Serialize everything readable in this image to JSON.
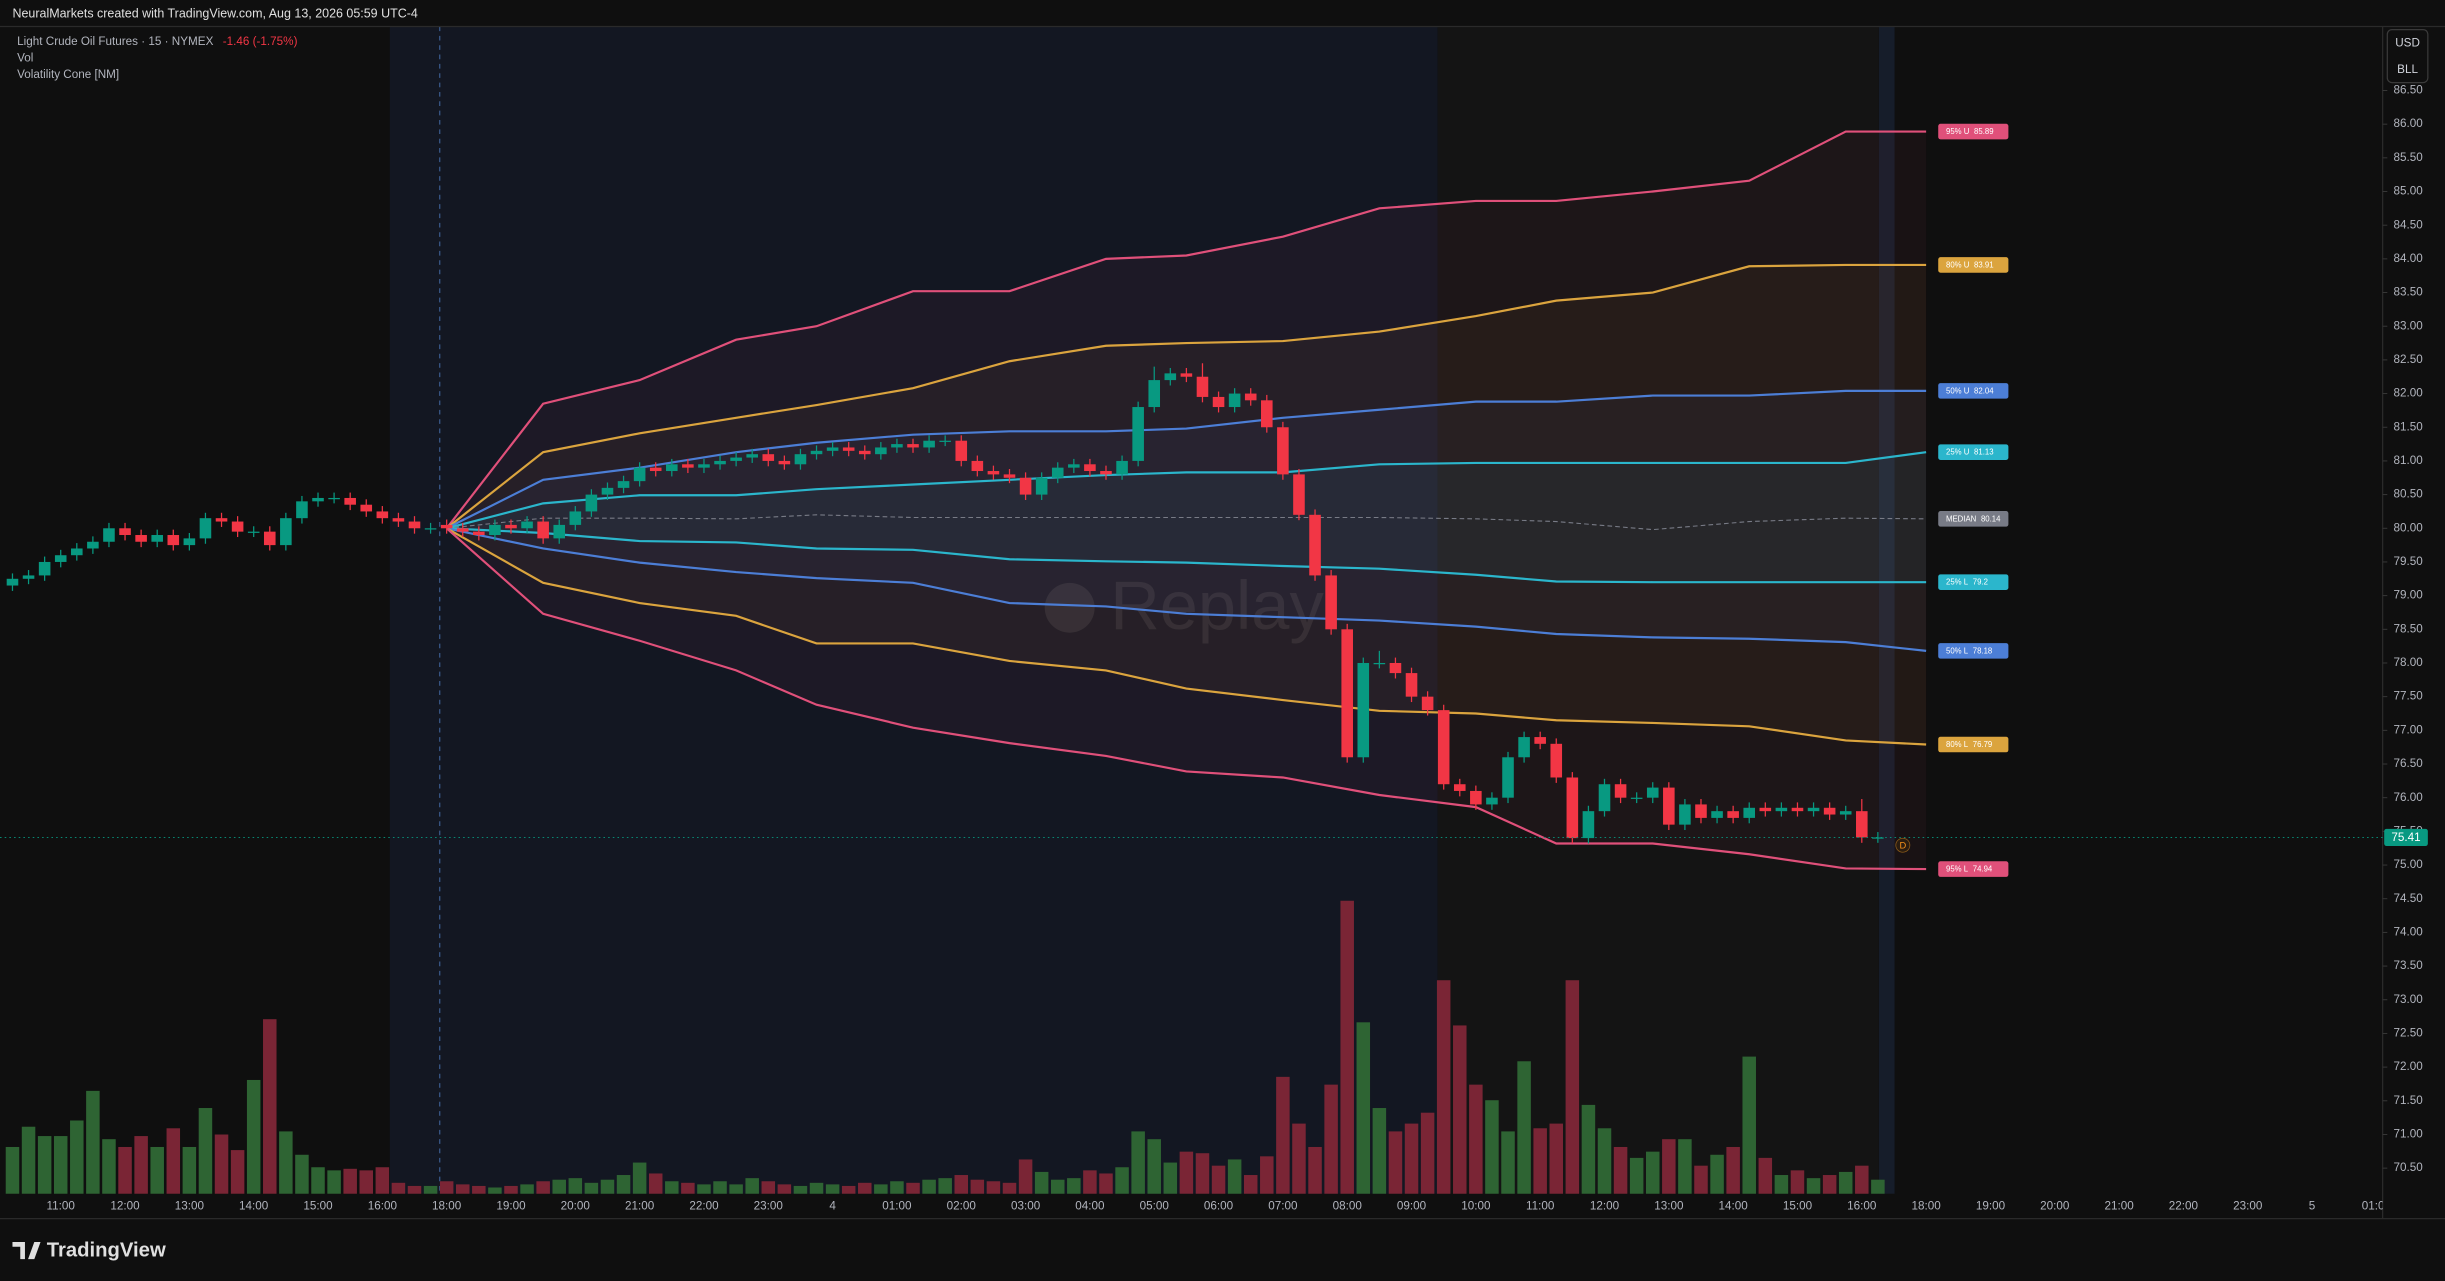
{
  "credit": "NeuralMarkets created with TradingView.com, Aug 13, 2026 05:59 UTC-4",
  "brand": "TradingView",
  "chart_data": {
    "type": "candlestick",
    "title": "Light Crude Oil Futures · 15 · NYMEX",
    "change": "-1.46 (-1.75%)",
    "indicators": [
      "Vol",
      "Volatility Cone [NM]"
    ],
    "currency": "USD",
    "unit": "BLL",
    "watermark": "Replay",
    "marker": "D",
    "up_color": "#089981",
    "down_color": "#f23645",
    "volume_up_color": "#2e6433",
    "volume_down_color": "#7a2535",
    "grid": false,
    "x": [
      "10:15",
      "10:30",
      "10:45",
      "11:00",
      "11:15",
      "11:30",
      "11:45",
      "12:00",
      "12:15",
      "12:30",
      "12:45",
      "13:00",
      "13:15",
      "13:30",
      "13:45",
      "14:00",
      "14:15",
      "14:30",
      "14:45",
      "15:00",
      "15:15",
      "15:30",
      "15:45",
      "16:00",
      "16:15",
      "16:30",
      "16:45",
      "18:00",
      "18:15",
      "18:30",
      "18:45",
      "19:00",
      "19:15",
      "19:30",
      "19:45",
      "20:00",
      "20:15",
      "20:30",
      "20:45",
      "21:00",
      "21:15",
      "21:30",
      "21:45",
      "22:00",
      "22:15",
      "22:30",
      "22:45",
      "23:00",
      "23:15",
      "23:30",
      "23:45",
      "4",
      "00:15",
      "00:30",
      "00:45",
      "01:00",
      "01:15",
      "01:30",
      "01:45",
      "02:00",
      "02:15",
      "02:30",
      "02:45",
      "03:00",
      "03:15",
      "03:30",
      "03:45",
      "04:00",
      "04:15",
      "04:30",
      "04:45",
      "05:00",
      "05:15",
      "05:30",
      "05:45",
      "06:00",
      "06:15",
      "06:30",
      "06:45",
      "07:00",
      "07:15",
      "07:30",
      "07:45",
      "08:00",
      "08:15",
      "08:30",
      "08:45",
      "09:00",
      "09:15",
      "09:30",
      "09:45",
      "10:00",
      "10:15",
      "10:30",
      "10:45",
      "11:00",
      "11:15",
      "11:30",
      "11:45",
      "12:00",
      "12:15",
      "12:30",
      "12:45",
      "13:00",
      "13:15",
      "13:30",
      "13:45",
      "14:00",
      "14:15",
      "14:30",
      "14:45",
      "15:00",
      "15:15",
      "15:30",
      "15:45",
      "16:00",
      "16:15",
      "16:30",
      "16:45",
      "18:00",
      "18:15",
      "18:30",
      "18:45",
      "19:00",
      "19:15",
      "19:30",
      "19:45",
      "20:00",
      "20:15",
      "20:30",
      "20:45",
      "21:00",
      "21:15",
      "21:30",
      "21:45",
      "22:00",
      "22:15",
      "22:30",
      "22:45",
      "23:00",
      "23:15",
      "23:30",
      "23:45",
      "5",
      "00:15",
      "00:30",
      "00:45",
      "01:00"
    ],
    "open": [
      79.15,
      79.25,
      79.3,
      79.5,
      79.6,
      79.7,
      79.8,
      80.0,
      79.9,
      79.8,
      79.9,
      79.75,
      79.85,
      80.15,
      80.1,
      79.95,
      79.95,
      79.75,
      80.15,
      80.4,
      80.45,
      80.45,
      80.35,
      80.25,
      80.15,
      80.1,
      80.0,
      80.05,
      80.0,
      79.95,
      79.9,
      80.05,
      80.0,
      80.1,
      79.85,
      80.05,
      80.25,
      80.5,
      80.6,
      80.7,
      80.9,
      80.85,
      80.95,
      80.9,
      80.95,
      81.0,
      81.05,
      81.1,
      81.0,
      80.95,
      81.1,
      81.15,
      81.2,
      81.15,
      81.1,
      81.2,
      81.25,
      81.2,
      81.3,
      81.3,
      81.0,
      80.85,
      80.8,
      80.75,
      80.5,
      80.75,
      80.9,
      80.95,
      80.85,
      80.8,
      81.0,
      81.8,
      82.2,
      82.3,
      82.25,
      81.95,
      81.8,
      82.0,
      81.9,
      81.5,
      80.8,
      80.2,
      79.3,
      78.5,
      76.6,
      78.0,
      78.0,
      77.85,
      77.5,
      77.3,
      76.2,
      76.1,
      75.9,
      76.0,
      76.6,
      76.9,
      76.8,
      76.3,
      75.4,
      75.8,
      76.2,
      76.0,
      76.0,
      76.15,
      75.6,
      75.9,
      75.7,
      75.8,
      75.7,
      75.85,
      75.8,
      75.85,
      75.8,
      75.85,
      75.75,
      75.8,
      75.41,
      null,
      null,
      null,
      null,
      null,
      null,
      null,
      null,
      null,
      null,
      null,
      null,
      null,
      null,
      null,
      null,
      null,
      null,
      null,
      null,
      null,
      null,
      null,
      null,
      null,
      null,
      null,
      null,
      null,
      null,
      null
    ],
    "high": [
      79.33,
      79.38,
      79.58,
      79.68,
      79.78,
      79.88,
      80.08,
      80.08,
      79.98,
      79.98,
      79.98,
      79.93,
      80.23,
      80.23,
      80.18,
      80.03,
      80.03,
      80.23,
      80.48,
      80.53,
      80.53,
      80.53,
      80.43,
      80.33,
      80.23,
      80.18,
      80.08,
      80.13,
      80.08,
      80.03,
      80.13,
      80.13,
      80.18,
      80.18,
      80.13,
      80.33,
      80.58,
      80.68,
      80.78,
      80.98,
      80.98,
      81.03,
      81.03,
      81.03,
      81.08,
      81.13,
      81.18,
      81.18,
      81.08,
      81.18,
      81.23,
      81.28,
      81.28,
      81.23,
      81.28,
      81.33,
      81.33,
      81.38,
      81.38,
      81.38,
      81.08,
      80.93,
      80.88,
      80.83,
      80.83,
      80.98,
      81.03,
      81.03,
      80.93,
      81.08,
      81.88,
      82.4,
      82.38,
      82.38,
      82.45,
      82.03,
      82.08,
      82.08,
      81.98,
      81.58,
      80.88,
      80.28,
      79.38,
      78.58,
      78.08,
      78.18,
      78.08,
      77.93,
      77.58,
      77.38,
      76.28,
      76.18,
      76.08,
      76.68,
      76.98,
      76.98,
      76.88,
      76.38,
      75.88,
      76.28,
      76.28,
      76.08,
      76.23,
      76.23,
      75.98,
      75.98,
      75.88,
      75.88,
      75.93,
      75.93,
      75.93,
      75.93,
      75.93,
      75.93,
      75.88,
      75.98,
      75.49,
      null,
      null,
      null,
      null,
      null,
      null,
      null,
      null,
      null,
      null,
      null,
      null,
      null,
      null,
      null,
      null,
      null,
      null,
      null,
      null,
      null,
      null,
      null,
      null,
      null,
      null,
      null,
      null,
      null,
      null,
      null
    ],
    "low": [
      79.07,
      79.17,
      79.22,
      79.42,
      79.52,
      79.62,
      79.72,
      79.82,
      79.72,
      79.72,
      79.67,
      79.67,
      79.77,
      80.02,
      79.87,
      79.87,
      79.67,
      79.67,
      80.07,
      80.32,
      80.37,
      80.27,
      80.17,
      80.07,
      80.02,
      79.92,
      79.92,
      79.92,
      79.87,
      79.82,
      79.82,
      79.92,
      79.92,
      79.77,
      79.77,
      79.97,
      80.17,
      80.42,
      80.52,
      80.62,
      80.77,
      80.77,
      80.82,
      80.82,
      80.87,
      80.92,
      80.97,
      80.92,
      80.87,
      80.87,
      81.02,
      81.07,
      81.07,
      81.02,
      81.02,
      81.12,
      81.12,
      81.12,
      81.22,
      80.92,
      80.77,
      80.72,
      80.67,
      80.42,
      80.42,
      80.67,
      80.82,
      80.77,
      80.72,
      80.72,
      80.92,
      81.72,
      82.12,
      82.17,
      81.87,
      81.72,
      81.72,
      81.82,
      81.42,
      80.72,
      80.12,
      79.22,
      78.42,
      76.52,
      76.52,
      77.92,
      77.77,
      77.42,
      77.22,
      76.12,
      76.02,
      75.82,
      75.82,
      75.92,
      76.52,
      76.72,
      76.22,
      75.32,
      75.32,
      75.72,
      75.92,
      75.92,
      75.92,
      75.52,
      75.52,
      75.62,
      75.62,
      75.62,
      75.62,
      75.72,
      75.72,
      75.72,
      75.72,
      75.67,
      75.67,
      75.33,
      75.33,
      null,
      null,
      null,
      null,
      null,
      null,
      null,
      null,
      null,
      null,
      null,
      null,
      null,
      null,
      null,
      null,
      null,
      null,
      null,
      null,
      null,
      null,
      null,
      null,
      null,
      null,
      null,
      null,
      null,
      null,
      null
    ],
    "close": [
      79.25,
      79.3,
      79.5,
      79.6,
      79.7,
      79.8,
      80.0,
      79.9,
      79.8,
      79.9,
      79.75,
      79.85,
      80.15,
      80.1,
      79.95,
      79.95,
      79.75,
      80.15,
      80.4,
      80.45,
      80.45,
      80.35,
      80.25,
      80.15,
      80.1,
      80.0,
      80.0,
      80.0,
      79.95,
      79.9,
      80.05,
      80.0,
      80.1,
      79.85,
      80.05,
      80.25,
      80.5,
      80.6,
      80.7,
      80.9,
      80.85,
      80.95,
      80.9,
      80.95,
      81.0,
      81.05,
      81.1,
      81.0,
      80.95,
      81.1,
      81.15,
      81.2,
      81.15,
      81.1,
      81.2,
      81.25,
      81.2,
      81.3,
      81.3,
      81.0,
      80.85,
      80.8,
      80.75,
      80.5,
      80.75,
      80.9,
      80.95,
      80.85,
      80.8,
      81.0,
      81.8,
      82.2,
      82.3,
      82.25,
      81.95,
      81.8,
      82.0,
      81.9,
      81.5,
      80.8,
      80.2,
      79.3,
      78.5,
      76.6,
      78.0,
      78.0,
      77.85,
      77.5,
      77.3,
      76.2,
      76.1,
      75.9,
      76.0,
      76.6,
      76.9,
      76.8,
      76.3,
      75.4,
      75.8,
      76.2,
      76.0,
      76.0,
      76.15,
      75.6,
      75.9,
      75.7,
      75.8,
      75.7,
      75.85,
      75.8,
      75.85,
      75.8,
      75.85,
      75.75,
      75.8,
      75.41,
      75.41,
      null,
      null,
      null,
      null,
      null,
      null,
      null,
      null,
      null,
      null,
      null,
      null,
      null,
      null,
      null,
      null,
      null,
      null,
      null,
      null,
      null,
      null,
      null,
      null,
      null,
      null,
      null,
      null,
      null,
      null,
      null
    ],
    "volume": [
      30,
      43,
      37,
      37,
      47,
      66,
      35,
      30,
      37,
      30,
      42,
      30,
      55,
      38,
      28,
      73,
      112,
      40,
      25,
      17,
      15,
      16,
      15,
      17,
      7,
      5,
      5,
      8,
      6,
      5,
      4,
      5,
      6,
      8,
      9,
      10,
      7,
      9,
      12,
      20,
      13,
      8,
      7,
      6,
      8,
      6,
      10,
      8,
      6,
      5,
      7,
      6,
      5,
      7,
      6,
      8,
      7,
      9,
      10,
      12,
      9,
      8,
      7,
      22,
      14,
      9,
      10,
      15,
      13,
      17,
      40,
      35,
      20,
      27,
      26,
      18,
      22,
      12,
      24,
      75,
      45,
      30,
      70,
      188,
      110,
      55,
      40,
      45,
      52,
      137,
      108,
      70,
      60,
      40,
      85,
      42,
      45,
      137,
      57,
      42,
      30,
      23,
      27,
      35,
      35,
      18,
      25,
      30,
      88,
      23,
      12,
      15,
      10,
      12,
      14,
      18,
      9,
      null,
      null,
      null,
      null,
      null,
      null,
      null,
      null,
      null,
      null,
      null,
      null,
      null,
      null,
      null,
      null,
      null,
      null,
      null,
      null,
      null,
      null,
      null,
      null,
      null,
      null,
      null,
      null,
      null,
      null,
      null
    ],
    "cone_x": [
      "18:00",
      "19:30",
      "21:00",
      "22:30",
      "23:45",
      "01:15",
      "02:45",
      "04:15",
      "05:30",
      "07:00",
      "08:30",
      "10:00",
      "11:15",
      "12:45",
      "14:15",
      "15:45",
      "18:00"
    ],
    "cone": [
      {
        "name": "95% U",
        "color": "#e0507a",
        "values": [
          80.0,
          81.85,
          82.2,
          82.8,
          83.0,
          83.52,
          83.52,
          84.0,
          84.05,
          84.33,
          84.75,
          84.86,
          84.86,
          85.0,
          85.16,
          85.89,
          85.89
        ]
      },
      {
        "name": "80% U",
        "color": "#dba43e",
        "values": [
          80.0,
          81.13,
          81.41,
          81.64,
          81.83,
          82.08,
          82.48,
          82.71,
          82.75,
          82.78,
          82.92,
          83.15,
          83.38,
          83.5,
          83.89,
          83.91,
          83.91
        ]
      },
      {
        "name": "50% U",
        "color": "#4c7ed6",
        "values": [
          80.0,
          80.72,
          80.9,
          81.13,
          81.27,
          81.39,
          81.44,
          81.44,
          81.48,
          81.64,
          81.76,
          81.88,
          81.88,
          81.97,
          81.97,
          82.04,
          82.04
        ]
      },
      {
        "name": "25% U",
        "color": "#2bb6cc",
        "values": [
          80.0,
          80.37,
          80.49,
          80.49,
          80.58,
          80.65,
          80.72,
          80.79,
          80.83,
          80.83,
          80.95,
          80.97,
          80.97,
          80.97,
          80.97,
          80.97,
          81.13
        ]
      },
      {
        "name": "MEDIAN",
        "color": "#787b86",
        "dashed": true,
        "values": [
          80.0,
          80.15,
          80.15,
          80.14,
          80.2,
          80.16,
          80.16,
          80.16,
          80.16,
          80.16,
          80.16,
          80.14,
          80.1,
          79.98,
          80.1,
          80.15,
          80.14
        ]
      },
      {
        "name": "25% L",
        "color": "#2bb6cc",
        "values": [
          80.0,
          79.93,
          79.81,
          79.79,
          79.7,
          79.68,
          79.54,
          79.51,
          79.49,
          79.44,
          79.4,
          79.31,
          79.21,
          79.2,
          79.2,
          79.2,
          79.2
        ]
      },
      {
        "name": "50% L",
        "color": "#4c7ed6",
        "values": [
          80.0,
          79.7,
          79.49,
          79.35,
          79.26,
          79.19,
          78.89,
          78.84,
          78.73,
          78.68,
          78.63,
          78.54,
          78.43,
          78.38,
          78.36,
          78.31,
          78.18
        ]
      },
      {
        "name": "80% L",
        "color": "#dba43e",
        "values": [
          80.0,
          79.19,
          78.89,
          78.7,
          78.29,
          78.29,
          78.03,
          77.89,
          77.62,
          77.45,
          77.29,
          77.25,
          77.15,
          77.11,
          77.06,
          76.85,
          76.79
        ]
      },
      {
        "name": "95% L",
        "color": "#e0507a",
        "values": [
          80.0,
          78.73,
          78.33,
          77.89,
          77.38,
          77.04,
          76.81,
          76.62,
          76.39,
          76.3,
          76.04,
          75.86,
          75.32,
          75.32,
          75.16,
          74.95,
          74.94
        ]
      }
    ],
    "ylim": [
      70.12,
      87.45
    ],
    "yticks": [
      {
        "value": 70.5,
        "label": "70.50"
      },
      {
        "value": 71,
        "label": "71.00"
      },
      {
        "value": 71.5,
        "label": "71.50"
      },
      {
        "value": 72,
        "label": "72.00"
      },
      {
        "value": 72.5,
        "label": "72.50"
      },
      {
        "value": 73,
        "label": "73.00"
      },
      {
        "value": 73.5,
        "label": "73.50"
      },
      {
        "value": 74,
        "label": "74.00"
      },
      {
        "value": 74.5,
        "label": "74.50"
      },
      {
        "value": 75,
        "label": "75.00"
      },
      {
        "value": 75.5,
        "label": "75.50"
      },
      {
        "value": 76,
        "label": "76.00"
      },
      {
        "value": 76.5,
        "label": "76.50"
      },
      {
        "value": 77,
        "label": "77.00"
      },
      {
        "value": 77.5,
        "label": "77.50"
      },
      {
        "value": 78,
        "label": "78.00"
      },
      {
        "value": 78.5,
        "label": "78.50"
      },
      {
        "value": 79,
        "label": "79.00"
      },
      {
        "value": 79.5,
        "label": "79.50"
      },
      {
        "value": 80,
        "label": "80.00"
      },
      {
        "value": 80.5,
        "label": "80.50"
      },
      {
        "value": 81,
        "label": "81.00"
      },
      {
        "value": 81.5,
        "label": "81.50"
      },
      {
        "value": 82,
        "label": "82.00"
      },
      {
        "value": 82.5,
        "label": "82.50"
      },
      {
        "value": 83,
        "label": "83.00"
      },
      {
        "value": 83.5,
        "label": "83.50"
      },
      {
        "value": 84,
        "label": "84.00"
      },
      {
        "value": 84.5,
        "label": "84.50"
      },
      {
        "value": 85,
        "label": "85.00"
      },
      {
        "value": 85.5,
        "label": "85.50"
      },
      {
        "value": 86,
        "label": "86.00"
      },
      {
        "value": 86.5,
        "label": "86.50"
      }
    ]
  }
}
